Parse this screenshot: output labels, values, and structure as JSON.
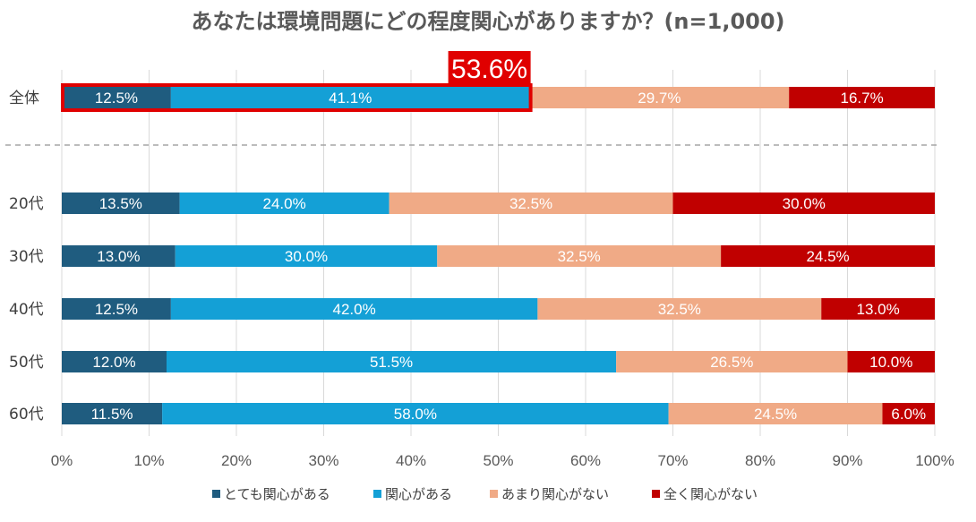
{
  "chart_data": {
    "type": "bar",
    "orientation": "horizontal-stacked-100",
    "title": "あなたは環境問題にどの程度関心がありますか？(n=1,000)",
    "xlim": [
      0,
      100
    ],
    "x_ticks": [
      "0%",
      "10%",
      "20%",
      "30%",
      "40%",
      "50%",
      "60%",
      "70%",
      "80%",
      "90%",
      "100%"
    ],
    "categories": [
      "全体",
      "20代",
      "30代",
      "40代",
      "50代",
      "60代"
    ],
    "series": [
      {
        "name": "とても関心がある",
        "color": "#1f5c7f",
        "values": [
          12.5,
          13.5,
          13.0,
          12.5,
          12.0,
          11.5
        ],
        "labels": [
          "12.5%",
          "13.5%",
          "13.0%",
          "12.5%",
          "12.0%",
          "11.5%"
        ]
      },
      {
        "name": "関心がある",
        "color": "#14a0d6",
        "values": [
          41.1,
          24.0,
          30.0,
          42.0,
          51.5,
          58.0
        ],
        "labels": [
          "41.1%",
          "24.0%",
          "30.0%",
          "42.0%",
          "51.5%",
          "58.0%"
        ]
      },
      {
        "name": "あまり関心がない",
        "color": "#f0aa86",
        "values": [
          29.7,
          32.5,
          32.5,
          32.5,
          26.5,
          24.5
        ],
        "labels": [
          "29.7%",
          "32.5%",
          "32.5%",
          "32.5%",
          "26.5%",
          "24.5%"
        ]
      },
      {
        "name": "全く関心がない",
        "color": "#c00000",
        "values": [
          16.7,
          30.0,
          24.5,
          13.0,
          10.0,
          6.0
        ],
        "labels": [
          "16.7%",
          "30.0%",
          "24.5%",
          "13.0%",
          "10.0%",
          "6.0%"
        ]
      }
    ],
    "callout": {
      "label": "53.6%",
      "value": 53.6,
      "category": "全体",
      "color": "#e00000"
    },
    "legend_position": "bottom",
    "grid": true
  }
}
